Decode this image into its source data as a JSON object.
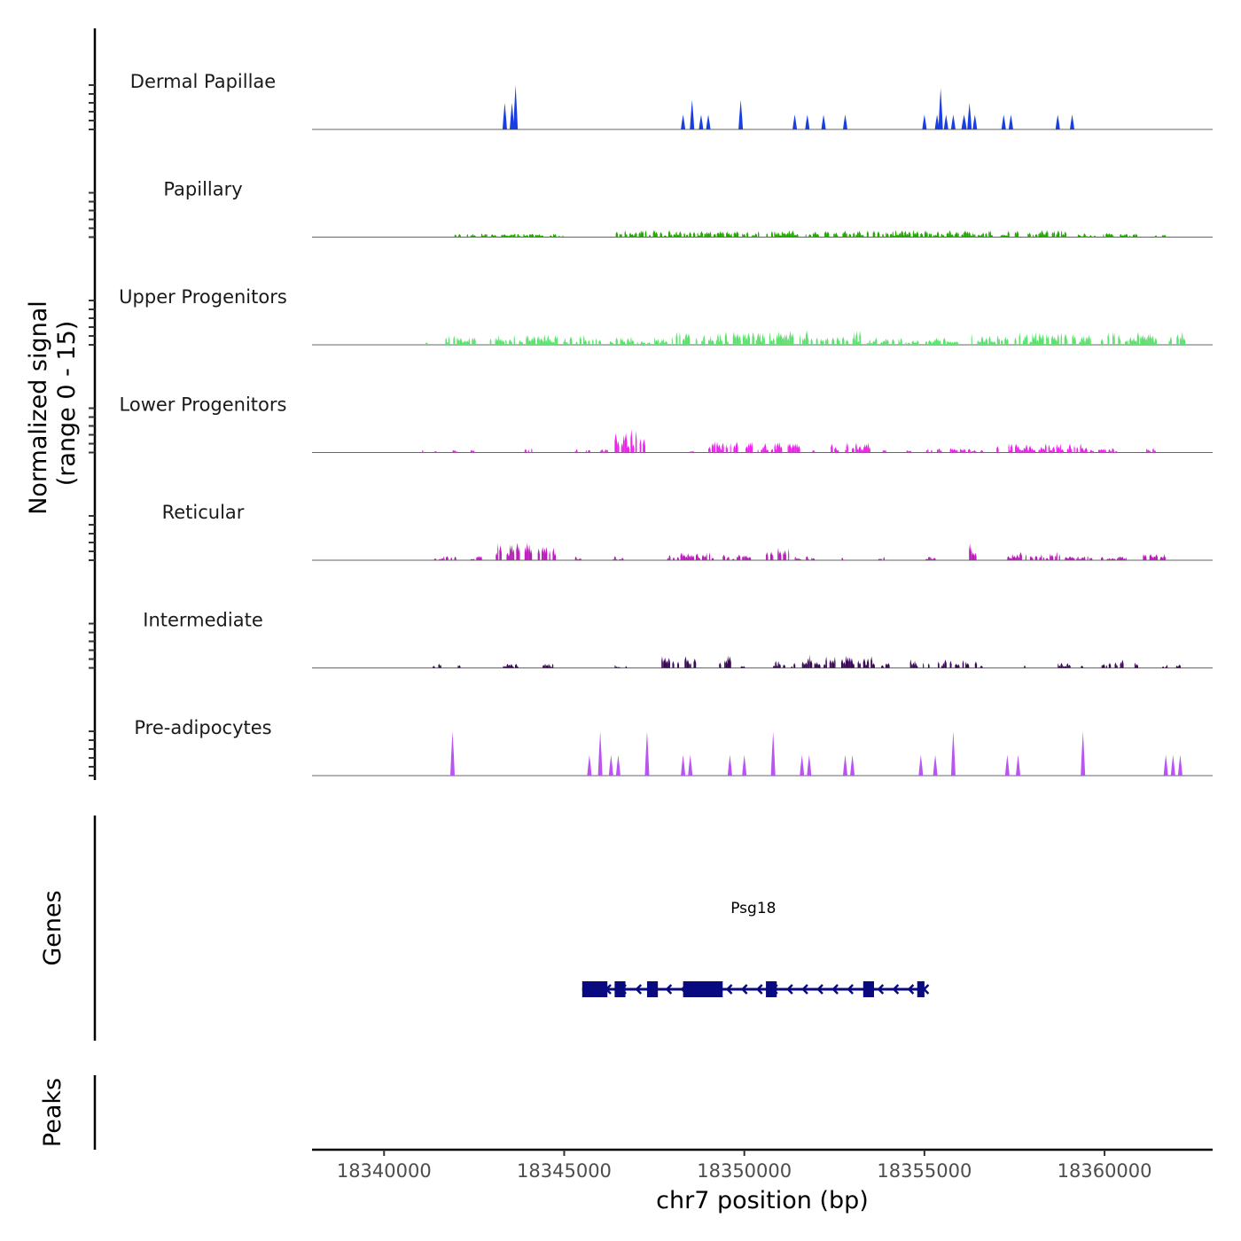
{
  "chart_data": {
    "type": "area",
    "subtype": "genome-coverage-tracks",
    "y_axis_title_line1": "Normalized signal",
    "y_axis_title_line2": "(range 0 - 15)",
    "ylim": [
      0,
      15
    ],
    "xlabel": "chr7 position (bp)",
    "xlim": [
      18338000,
      18363000
    ],
    "x_ticks": [
      18340000,
      18345000,
      18350000,
      18355000,
      18360000
    ],
    "x_tick_labels": [
      "18340000",
      "18345000",
      "18350000",
      "18355000",
      "18360000"
    ],
    "genes_label": "Genes",
    "peaks_label": "Peaks",
    "tracks": [
      {
        "name": "Dermal Papillae",
        "color": "#1a3fe0",
        "peaks": [
          [
            18343350,
            9,
            50
          ],
          [
            18343550,
            9,
            40
          ],
          [
            18343650,
            15,
            40
          ],
          [
            18348300,
            5,
            60
          ],
          [
            18348550,
            10,
            50
          ],
          [
            18348800,
            5,
            100
          ],
          [
            18349000,
            5,
            60
          ],
          [
            18349900,
            10,
            60
          ],
          [
            18351400,
            5,
            50
          ],
          [
            18351750,
            5,
            50
          ],
          [
            18352200,
            5,
            50
          ],
          [
            18352800,
            5,
            60
          ],
          [
            18355000,
            5,
            50
          ],
          [
            18355350,
            5,
            50
          ],
          [
            18355450,
            14,
            40
          ],
          [
            18355600,
            5,
            60
          ],
          [
            18355800,
            5,
            50
          ],
          [
            18356100,
            5,
            150
          ],
          [
            18356250,
            9,
            100
          ],
          [
            18356400,
            5,
            100
          ],
          [
            18357200,
            5,
            50
          ],
          [
            18357400,
            5,
            60
          ],
          [
            18358700,
            5,
            50
          ],
          [
            18359100,
            5,
            50
          ]
        ]
      },
      {
        "name": "Papillary",
        "color": "#22aa00",
        "range": [
          18340000,
          18363000
        ],
        "clusters": [
          [
            18341900,
            18342500,
            1.2
          ],
          [
            18342600,
            18344400,
            1.3
          ],
          [
            18344600,
            18345000,
            1.2
          ],
          [
            18346400,
            18353300,
            2.4
          ],
          [
            18353400,
            18358900,
            2.4
          ],
          [
            18359200,
            18360900,
            1.4
          ],
          [
            18361400,
            18361700,
            1.0
          ]
        ]
      },
      {
        "name": "Upper Progenitors",
        "color": "#5ee070",
        "clusters": [
          [
            18341100,
            18341200,
            1.5
          ],
          [
            18341700,
            18342600,
            3.5
          ],
          [
            18342900,
            18346100,
            3.5
          ],
          [
            18346200,
            18348000,
            3.0
          ],
          [
            18348100,
            18353300,
            5.0
          ],
          [
            18353400,
            18356000,
            2.5
          ],
          [
            18356300,
            18359700,
            4.5
          ],
          [
            18359900,
            18362200,
            4.5
          ]
        ]
      },
      {
        "name": "Lower Progenitors",
        "color": "#ee22ee",
        "clusters": [
          [
            18341000,
            18341100,
            1.5
          ],
          [
            18341400,
            18341500,
            1.0
          ],
          [
            18341900,
            18342000,
            1.0
          ],
          [
            18342400,
            18342500,
            1.0
          ],
          [
            18343900,
            18344100,
            1.8
          ],
          [
            18345300,
            18345400,
            1.2
          ],
          [
            18345600,
            18345700,
            1.2
          ],
          [
            18346000,
            18346200,
            1.2
          ],
          [
            18346400,
            18347200,
            8.0
          ],
          [
            18348400,
            18348600,
            1.2
          ],
          [
            18348900,
            18351500,
            3.8
          ],
          [
            18351800,
            18352000,
            1.2
          ],
          [
            18352400,
            18353600,
            3.5
          ],
          [
            18353800,
            18354000,
            1.5
          ],
          [
            18354500,
            18354600,
            1.0
          ],
          [
            18355000,
            18356600,
            1.5
          ],
          [
            18357000,
            18359500,
            3.2
          ],
          [
            18359600,
            18360300,
            1.5
          ],
          [
            18361100,
            18361400,
            2.0
          ]
        ]
      },
      {
        "name": "Reticular",
        "color": "#b81db8",
        "clusters": [
          [
            18341300,
            18342000,
            1.5
          ],
          [
            18342400,
            18342700,
            1.5
          ],
          [
            18343100,
            18343800,
            6.0
          ],
          [
            18343900,
            18344800,
            6.0
          ],
          [
            18345300,
            18345500,
            1.5
          ],
          [
            18346300,
            18346600,
            1.5
          ],
          [
            18347600,
            18349200,
            3.0
          ],
          [
            18349400,
            18350200,
            2.0
          ],
          [
            18350600,
            18351300,
            4.5
          ],
          [
            18351400,
            18352000,
            1.5
          ],
          [
            18352600,
            18352900,
            1.3
          ],
          [
            18353600,
            18353900,
            1.3
          ],
          [
            18355000,
            18355300,
            1.3
          ],
          [
            18355900,
            18356000,
            3.0
          ],
          [
            18356200,
            18356400,
            6.0
          ],
          [
            18357300,
            18358800,
            3.0
          ],
          [
            18358900,
            18359700,
            1.5
          ],
          [
            18359900,
            18360600,
            1.3
          ],
          [
            18361000,
            18361800,
            2.8
          ]
        ]
      },
      {
        "name": "Intermediate",
        "color": "#3b0a55",
        "clusters": [
          [
            18341300,
            18341600,
            1.5
          ],
          [
            18342000,
            18342100,
            1.0
          ],
          [
            18343300,
            18343700,
            1.5
          ],
          [
            18344400,
            18344700,
            1.5
          ],
          [
            18346400,
            18346700,
            1.0
          ],
          [
            18347700,
            18348600,
            4.0
          ],
          [
            18349300,
            18349600,
            6.0
          ],
          [
            18349900,
            18350000,
            1.2
          ],
          [
            18350700,
            18351100,
            2.5
          ],
          [
            18351300,
            18351400,
            2.0
          ],
          [
            18351600,
            18353600,
            4.5
          ],
          [
            18353800,
            18354000,
            2.5
          ],
          [
            18354600,
            18356200,
            3.0
          ],
          [
            18356400,
            18356600,
            2.5
          ],
          [
            18357200,
            18357300,
            1.2
          ],
          [
            18357700,
            18357800,
            1.2
          ],
          [
            18358700,
            18359000,
            2.0
          ],
          [
            18359100,
            18359400,
            1.0
          ],
          [
            18359800,
            18360500,
            3.0
          ],
          [
            18360800,
            18360900,
            2.0
          ],
          [
            18361600,
            18362100,
            1.5
          ]
        ]
      },
      {
        "name": "Pre-adipocytes",
        "color": "#b855f0",
        "peaks": [
          [
            18341900,
            15,
            90
          ],
          [
            18345700,
            7,
            100
          ],
          [
            18346000,
            15,
            90
          ],
          [
            18346300,
            7,
            80
          ],
          [
            18346500,
            7,
            90
          ],
          [
            18347300,
            15,
            110
          ],
          [
            18348300,
            7,
            80
          ],
          [
            18348500,
            7,
            80
          ],
          [
            18349600,
            7,
            80
          ],
          [
            18350000,
            7,
            80
          ],
          [
            18350800,
            15,
            120
          ],
          [
            18351600,
            7,
            80
          ],
          [
            18351800,
            7,
            80
          ],
          [
            18352800,
            7,
            80
          ],
          [
            18353000,
            7,
            80
          ],
          [
            18354900,
            7,
            80
          ],
          [
            18355300,
            7,
            80
          ],
          [
            18355800,
            15,
            90
          ],
          [
            18357300,
            7,
            80
          ],
          [
            18357600,
            7,
            80
          ],
          [
            18359400,
            15,
            110
          ],
          [
            18361700,
            7,
            70
          ],
          [
            18361900,
            7,
            70
          ],
          [
            18362100,
            7,
            120
          ]
        ]
      }
    ],
    "gene": {
      "name": "Psg18",
      "strand": "-",
      "start": 18345500,
      "end": 18355000,
      "exons": [
        [
          18345500,
          18346200
        ],
        [
          18346400,
          18346700
        ],
        [
          18347300,
          18347600
        ],
        [
          18348300,
          18349400
        ],
        [
          18350600,
          18350900
        ],
        [
          18353300,
          18353600
        ],
        [
          18354800,
          18355000
        ]
      ]
    }
  }
}
